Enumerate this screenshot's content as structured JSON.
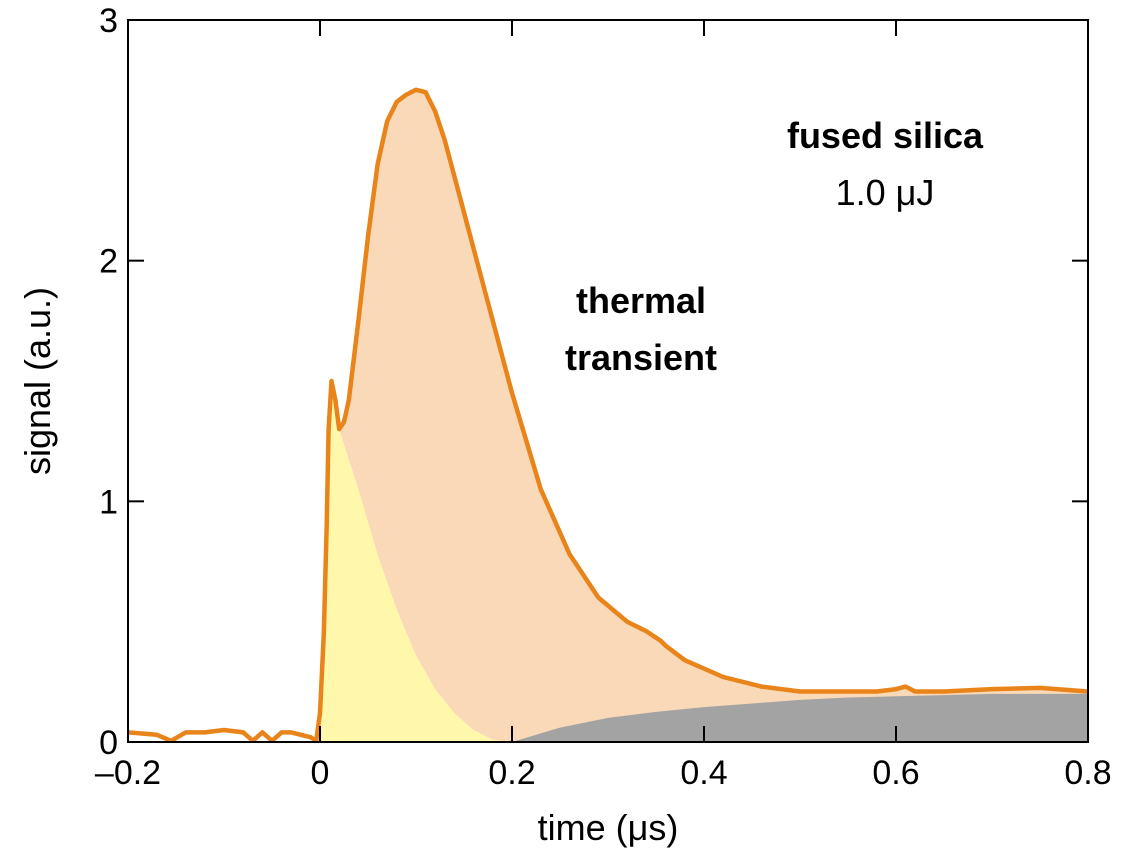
{
  "chart_data": {
    "type": "area",
    "xlabel": "time (μs)",
    "ylabel": "signal (a.u.)",
    "xlim": [
      -0.2,
      0.8
    ],
    "ylim": [
      0,
      3
    ],
    "xticks": [
      -0.2,
      0,
      0.2,
      0.4,
      0.6,
      0.8
    ],
    "xtick_labels": [
      "–0.2",
      "0",
      "0.2",
      "0.4",
      "0.6",
      "0.8"
    ],
    "yticks": [
      0,
      1,
      2,
      3
    ],
    "ytick_labels": [
      "0",
      "1",
      "2",
      "3"
    ],
    "grid": false,
    "annotations": {
      "sample": "fused silica",
      "energy": "1.0 μJ",
      "thermal_line1": "thermal",
      "thermal_line2": "transient"
    },
    "colors": {
      "signal_line": "#e8841a",
      "thermal_fill": "#f9d9b7",
      "fast_fill": "#fff8ac",
      "baseline_fill": "#a3a3a3"
    },
    "series": [
      {
        "role": "measured-signal",
        "x": [
          -0.2,
          -0.17,
          -0.155,
          -0.14,
          -0.12,
          -0.1,
          -0.08,
          -0.07,
          -0.06,
          -0.05,
          -0.04,
          -0.03,
          -0.02,
          -0.01,
          -0.004,
          0.0,
          0.004,
          0.007,
          0.009,
          0.012,
          0.016,
          0.02,
          0.025,
          0.03,
          0.04,
          0.05,
          0.06,
          0.07,
          0.08,
          0.09,
          0.1,
          0.11,
          0.12,
          0.13,
          0.15,
          0.17,
          0.2,
          0.23,
          0.26,
          0.29,
          0.32,
          0.34,
          0.355,
          0.36,
          0.38,
          0.42,
          0.46,
          0.5,
          0.54,
          0.58,
          0.6,
          0.61,
          0.62,
          0.65,
          0.7,
          0.75,
          0.8
        ],
        "y": [
          0.04,
          0.03,
          0.005,
          0.04,
          0.04,
          0.05,
          0.04,
          0.005,
          0.04,
          0.005,
          0.04,
          0.04,
          0.03,
          0.02,
          0.005,
          0.12,
          0.45,
          0.9,
          1.3,
          1.5,
          1.42,
          1.3,
          1.33,
          1.42,
          1.75,
          2.1,
          2.4,
          2.58,
          2.66,
          2.69,
          2.71,
          2.7,
          2.62,
          2.5,
          2.2,
          1.9,
          1.45,
          1.05,
          0.78,
          0.6,
          0.5,
          0.46,
          0.42,
          0.4,
          0.34,
          0.27,
          0.23,
          0.21,
          0.21,
          0.21,
          0.22,
          0.23,
          0.21,
          0.21,
          0.22,
          0.225,
          0.21
        ]
      },
      {
        "role": "fast-component",
        "x": [
          0.0,
          0.004,
          0.007,
          0.009,
          0.012,
          0.016,
          0.02,
          0.04,
          0.06,
          0.08,
          0.1,
          0.12,
          0.14,
          0.16,
          0.18,
          0.2
        ],
        "y": [
          0.12,
          0.45,
          0.9,
          1.3,
          1.5,
          1.42,
          1.3,
          1.05,
          0.78,
          0.55,
          0.36,
          0.22,
          0.12,
          0.05,
          0.01,
          0.0
        ]
      },
      {
        "role": "baseline-component",
        "x": [
          0.2,
          0.25,
          0.3,
          0.35,
          0.4,
          0.45,
          0.5,
          0.55,
          0.6,
          0.65,
          0.7,
          0.75,
          0.8
        ],
        "y": [
          0.0,
          0.06,
          0.1,
          0.125,
          0.145,
          0.16,
          0.175,
          0.185,
          0.19,
          0.195,
          0.2,
          0.2,
          0.2
        ]
      }
    ]
  }
}
